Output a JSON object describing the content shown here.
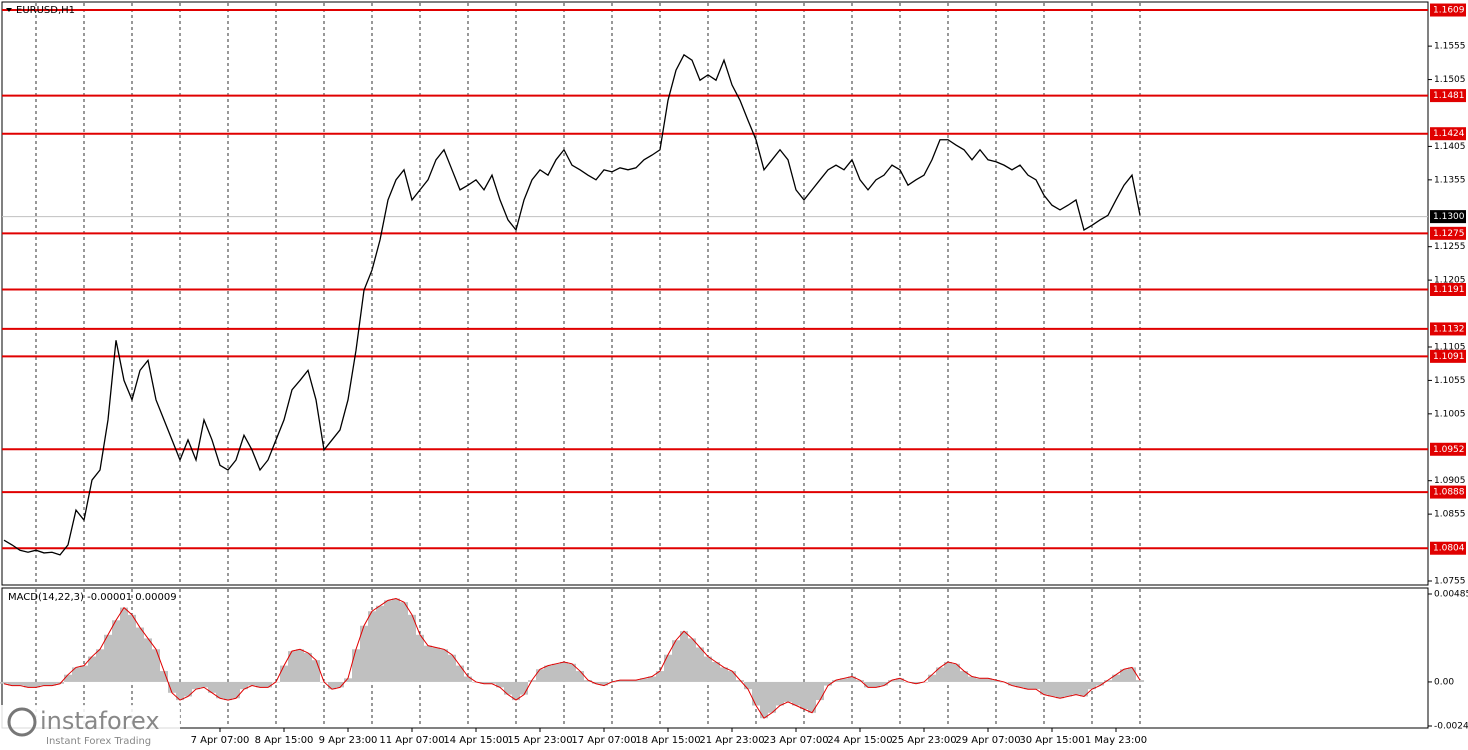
{
  "chart_data": [
    {
      "type": "line",
      "title": "EURUSD,H1",
      "color": "#000000",
      "categories": [
        null,
        null,
        null,
        null,
        null,
        null,
        null,
        null,
        null,
        null,
        null,
        null,
        null,
        null,
        null,
        null,
        null,
        null,
        null,
        null,
        null,
        null,
        null,
        null,
        null,
        null,
        null,
        "7 Apr 07:00",
        null,
        null,
        null,
        null,
        null,
        null,
        null,
        "8 Apr 15:00",
        null,
        null,
        null,
        null,
        null,
        null,
        null,
        "9 Apr 23:00",
        null,
        null,
        null,
        null,
        null,
        null,
        null,
        "11 Apr 07:00",
        null,
        null,
        null,
        null,
        null,
        null,
        null,
        "14 Apr 15:00",
        null,
        null,
        null,
        null,
        null,
        null,
        null,
        "15 Apr 23:00",
        null,
        null,
        null,
        null,
        null,
        null,
        null,
        "17 Apr 07:00",
        null,
        null,
        null,
        null,
        null,
        null,
        null,
        "18 Apr 15:00",
        null,
        null,
        null,
        null,
        null,
        null,
        null,
        "21 Apr 23:00",
        null,
        null,
        null,
        null,
        null,
        null,
        null,
        "23 Apr 07:00",
        null,
        null,
        null,
        null,
        null,
        null,
        null,
        "24 Apr 15:00",
        null,
        null,
        null,
        null,
        null,
        null,
        null,
        "25 Apr 23:00",
        null,
        null,
        null,
        null,
        null,
        null,
        null,
        "29 Apr 07:00",
        null,
        null,
        null,
        null,
        null,
        null,
        null,
        "30 Apr 15:00",
        null,
        null,
        null,
        null,
        null,
        null,
        null,
        "1 May 23:00",
        null,
        null,
        null
      ],
      "values": [
        1.0816,
        1.0809,
        1.0801,
        1.0798,
        1.0801,
        1.0797,
        1.0798,
        1.0794,
        1.0809,
        1.0861,
        1.0846,
        1.0906,
        1.0921,
        1.0996,
        1.1115,
        1.1055,
        1.1026,
        1.107,
        1.1085,
        1.1026,
        1.0996,
        1.0966,
        1.0936,
        1.0966,
        1.0936,
        1.0996,
        1.0966,
        1.0928,
        1.0921,
        1.0936,
        1.0973,
        1.0951,
        1.0921,
        1.0936,
        1.0966,
        1.0996,
        1.1041,
        1.1055,
        1.107,
        1.1026,
        1.0951,
        1.0966,
        1.0981,
        1.1026,
        1.11,
        1.119,
        1.122,
        1.1265,
        1.1325,
        1.1355,
        1.137,
        1.1325,
        1.134,
        1.1355,
        1.1385,
        1.14,
        1.137,
        1.134,
        1.1347,
        1.1355,
        1.134,
        1.1362,
        1.1325,
        1.1295,
        1.128,
        1.1325,
        1.1355,
        1.137,
        1.1362,
        1.1385,
        1.14,
        1.1377,
        1.137,
        1.1362,
        1.1355,
        1.137,
        1.1367,
        1.1373,
        1.137,
        1.1373,
        1.1385,
        1.1392,
        1.14,
        1.1474,
        1.1519,
        1.1542,
        1.1534,
        1.1504,
        1.1512,
        1.1504,
        1.1534,
        1.1497,
        1.1474,
        1.1444,
        1.1415,
        1.137,
        1.1385,
        1.14,
        1.1385,
        1.134,
        1.1325,
        1.134,
        1.1355,
        1.137,
        1.1377,
        1.137,
        1.1385,
        1.1355,
        1.134,
        1.1355,
        1.1362,
        1.1377,
        1.137,
        1.1347,
        1.1355,
        1.1362,
        1.1385,
        1.1415,
        1.1415,
        1.1407,
        1.14,
        1.1385,
        1.14,
        1.1385,
        1.1382,
        1.1377,
        1.137,
        1.1377,
        1.1362,
        1.1355,
        1.1332,
        1.1317,
        1.131,
        1.1317,
        1.1325,
        1.128,
        1.1287,
        1.1295,
        1.1302,
        1.1325,
        1.1347,
        1.1362,
        1.1302
      ],
      "ylim": [
        1.0749,
        1.1621
      ],
      "yticks": [
        1.1555,
        1.1505,
        1.1405,
        1.1355,
        1.1255,
        1.1205,
        1.1105,
        1.1055,
        1.1005,
        1.0905,
        1.0855,
        1.0755
      ],
      "levels": [
        1.1609,
        1.1481,
        1.1424,
        1.1275,
        1.1191,
        1.1132,
        1.1091,
        1.0952,
        1.0888,
        1.0804
      ],
      "level_color": "#e00000",
      "current_price": {
        "value": 1.13,
        "label": "1.1300"
      }
    },
    {
      "type": "bar",
      "title": "MACD(14,22,3) -0.00001 0.00009",
      "color": "#c0c0c0",
      "line_color": "#e00000",
      "values": [
        -0.0001,
        -0.0002,
        -0.0002,
        -0.0003,
        -0.0003,
        -0.0002,
        -0.0002,
        -0.0001,
        0.0004,
        0.0008,
        0.0009,
        0.0014,
        0.0018,
        0.0026,
        0.0034,
        0.0041,
        0.0037,
        0.003,
        0.0024,
        0.0018,
        0.0006,
        -0.0006,
        -0.001,
        -0.0008,
        -0.0004,
        -0.0003,
        -0.0006,
        -0.0009,
        -0.001,
        -0.0009,
        -0.0004,
        -0.0002,
        -0.0003,
        -0.0003,
        0,
        0.0009,
        0.0017,
        0.0018,
        0.0016,
        0.0012,
        0,
        -0.0004,
        -0.0003,
        0.0002,
        0.0018,
        0.0031,
        0.0039,
        0.0042,
        0.0045,
        0.0046,
        0.0044,
        0.0037,
        0.0026,
        0.002,
        0.0019,
        0.0018,
        0.0015,
        0.0009,
        0.0003,
        0,
        -0.0001,
        -0.0001,
        -0.0003,
        -0.0007,
        -0.001,
        -0.0007,
        0.0001,
        0.0007,
        0.0009,
        0.001,
        0.0011,
        0.001,
        0.0006,
        0.0001,
        -0.0001,
        -0.0002,
        0,
        0.0001,
        0.0001,
        0.0001,
        0.0002,
        0.0003,
        0.0006,
        0.0015,
        0.0023,
        0.0028,
        0.0024,
        0.0019,
        0.0014,
        0.0011,
        0.0008,
        0.0006,
        0.0001,
        -0.0004,
        -0.0013,
        -0.002,
        -0.0017,
        -0.0013,
        -0.0011,
        -0.0013,
        -0.0015,
        -0.0017,
        -0.001,
        -0.0002,
        0.0001,
        0.0002,
        0.0003,
        0.0001,
        -0.0003,
        -0.0003,
        -0.0002,
        0.0001,
        0.0002,
        0,
        -0.0001,
        0,
        0.0004,
        0.0008,
        0.0011,
        0.001,
        0.0006,
        0.0003,
        0.0002,
        0.0002,
        0.0001,
        0,
        -0.0002,
        -0.0003,
        -0.0004,
        -0.0004,
        -0.0007,
        -0.0008,
        -0.0009,
        -0.0008,
        -0.0007,
        -0.0008,
        -0.0004,
        -0.0002,
        0.0001,
        0.0004,
        0.0007,
        0.0008,
        0.0001
      ],
      "ylim": [
        -0.00254,
        0.00518
      ],
      "yticks": [
        0.00485,
        {
          "value": 0,
          "label": "0.00"
        },
        -0.00243
      ]
    }
  ],
  "branding": {
    "name": "instaforex",
    "tagline": "Instant Forex Trading"
  }
}
